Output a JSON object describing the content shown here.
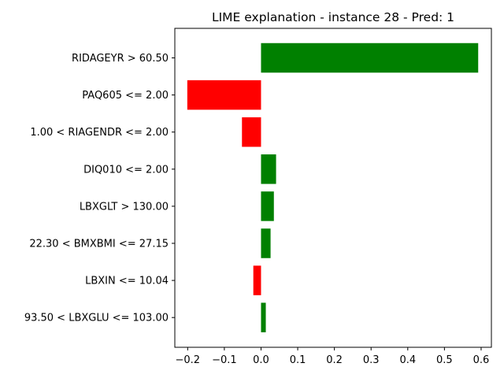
{
  "chart_data": {
    "type": "bar",
    "orientation": "horizontal",
    "title": "LIME explanation - instance 28 - Pred: 1",
    "xlabel": "",
    "ylabel": "",
    "xlim": [
      -0.235,
      0.628
    ],
    "xticks": [
      -0.2,
      -0.1,
      0.0,
      0.1,
      0.2,
      0.3,
      0.4,
      0.5,
      0.6
    ],
    "xtick_labels": [
      "−0.2",
      "−0.1",
      "0.0",
      "0.1",
      "0.2",
      "0.3",
      "0.4",
      "0.5",
      "0.6"
    ],
    "grid": false,
    "categories": [
      "RIDAGEYR > 60.50",
      "PAQ605 <= 2.00",
      "1.00 < RIAGENDR <= 2.00",
      "DIQ010 <= 2.00",
      "LBXGLT > 130.00",
      "22.30 < BMXBMI <= 27.15",
      "LBXIN <= 10.04",
      "93.50 < LBXGLU <= 103.00"
    ],
    "values": [
      0.592,
      -0.201,
      -0.052,
      0.041,
      0.035,
      0.026,
      -0.021,
      0.013
    ],
    "colors": {
      "positive": "#008000",
      "negative": "#ff0000"
    }
  }
}
